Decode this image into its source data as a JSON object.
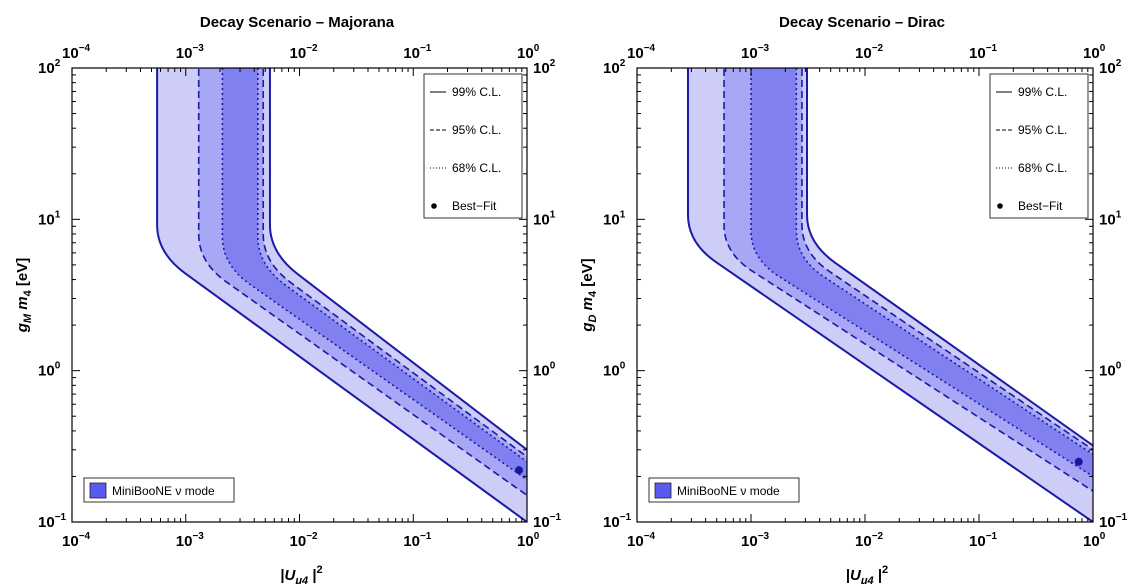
{
  "chart_data": [
    {
      "type": "area",
      "title": "Decay Scenario – Majorana",
      "xlabel": "|Uμ4|²",
      "ylabel": "gM m4 [eV]",
      "xlim": [
        0.0001,
        1
      ],
      "ylim": [
        0.1,
        100
      ],
      "xscale": "log",
      "yscale": "log",
      "x_tick_labels": [
        "10⁻⁴",
        "10⁻³",
        "10⁻²",
        "10⁻¹",
        "10⁰"
      ],
      "y_tick_labels": [
        "10⁻¹",
        "10⁰",
        "10¹",
        "10²"
      ],
      "legend": {
        "placement": "top-right",
        "entries": [
          "99% C.L.",
          "95% C.L.",
          "68% C.L.",
          "Best−Fit"
        ]
      },
      "fill_legend": {
        "placement": "bottom-left",
        "label": "MiniBooNE ν mode"
      },
      "contours": [
        {
          "level": "99% C.L.",
          "style": "solid",
          "fill": "#cdcdf7",
          "left": {
            "vertical_x": 0.00056,
            "slope_start_y": 6,
            "y_at_x1": 0.1
          },
          "right": {
            "vertical_x": 0.0055,
            "slope_start_y": 6,
            "y_at_x1": 0.3
          }
        },
        {
          "level": "95% C.L.",
          "style": "dashed",
          "fill": "#a7a7f5",
          "left": {
            "vertical_x": 0.0013,
            "slope_start_y": 5.2,
            "y_at_x1": 0.15
          },
          "right": {
            "vertical_x": 0.0048,
            "slope_start_y": 5.2,
            "y_at_x1": 0.27
          }
        },
        {
          "level": "68% C.L.",
          "style": "dotted",
          "fill": "#8080f0",
          "left": {
            "vertical_x": 0.0021,
            "slope_start_y": 5,
            "y_at_x1": 0.19
          },
          "right": {
            "vertical_x": 0.0043,
            "slope_start_y": 5,
            "y_at_x1": 0.25
          }
        }
      ],
      "best_fit": {
        "x": 0.85,
        "y": 0.22
      }
    },
    {
      "type": "area",
      "title": "Decay Scenario – Dirac",
      "xlabel": "|Uμ4|²",
      "ylabel": "gD m4 [eV]",
      "xlim": [
        0.0001,
        1
      ],
      "ylim": [
        0.1,
        100
      ],
      "xscale": "log",
      "yscale": "log",
      "x_tick_labels": [
        "10⁻⁴",
        "10⁻³",
        "10⁻²",
        "10⁻¹",
        "10⁰"
      ],
      "y_tick_labels": [
        "10⁻¹",
        "10⁰",
        "10¹",
        "10²"
      ],
      "legend": {
        "placement": "top-right",
        "entries": [
          "99% C.L.",
          "95% C.L.",
          "68% C.L.",
          "Best−Fit"
        ]
      },
      "fill_legend": {
        "placement": "bottom-left",
        "label": "MiniBooNE ν mode"
      },
      "contours": [
        {
          "level": "99% C.L.",
          "style": "solid",
          "fill": "#cdcdf7",
          "left": {
            "vertical_x": 0.00028,
            "slope_start_y": 7,
            "y_at_x1": 0.1
          },
          "right": {
            "vertical_x": 0.0031,
            "slope_start_y": 7,
            "y_at_x1": 0.32
          }
        },
        {
          "level": "95% C.L.",
          "style": "dashed",
          "fill": "#a7a7f5",
          "left": {
            "vertical_x": 0.00058,
            "slope_start_y": 6,
            "y_at_x1": 0.16
          },
          "right": {
            "vertical_x": 0.0028,
            "slope_start_y": 6,
            "y_at_x1": 0.3
          }
        },
        {
          "level": "68% C.L.",
          "style": "dotted",
          "fill": "#8080f0",
          "left": {
            "vertical_x": 0.001,
            "slope_start_y": 5.5,
            "y_at_x1": 0.2
          },
          "right": {
            "vertical_x": 0.0025,
            "slope_start_y": 5.5,
            "y_at_x1": 0.28
          }
        }
      ],
      "best_fit": {
        "x": 0.75,
        "y": 0.25
      }
    }
  ],
  "colors": {
    "line": "#1a1aa8",
    "best_fit": "#1818a0",
    "legend_swatch": "#5a5af0"
  }
}
